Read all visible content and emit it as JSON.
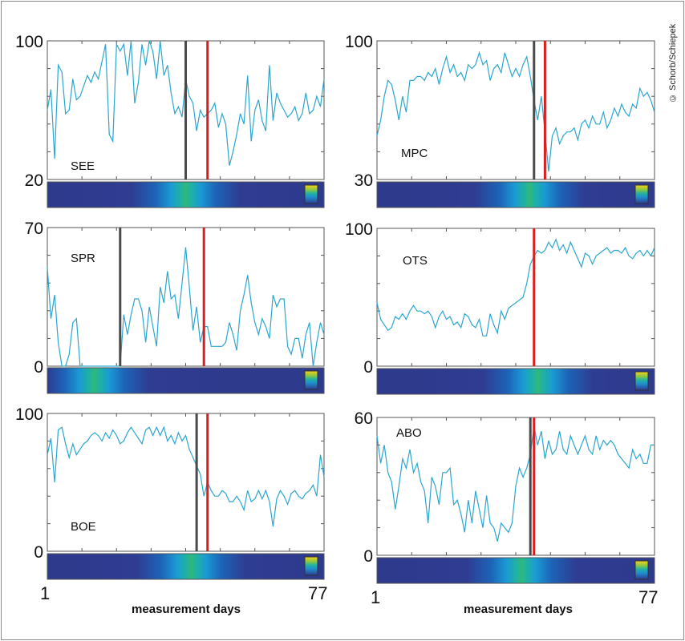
{
  "credit": "© Schorb/Schiepek",
  "x_axis_label": "measurement days",
  "chart_data": [
    {
      "type": "line",
      "label": "SEE",
      "ylim": [
        20,
        100
      ],
      "y_ticks": [
        "100",
        "20"
      ],
      "xlim": [
        1,
        77
      ],
      "black_marker_day": 39,
      "red_marker_day": 45,
      "series_color": "#2aa6d0",
      "values": [
        60,
        72,
        32,
        86,
        82,
        58,
        60,
        78,
        66,
        68,
        74,
        80,
        76,
        82,
        78,
        88,
        98,
        46,
        42,
        98,
        94,
        98,
        80,
        100,
        64,
        76,
        98,
        86,
        100,
        94,
        78,
        100,
        80,
        86,
        70,
        58,
        62,
        56,
        78,
        68,
        64,
        48,
        60,
        56,
        58,
        60,
        64,
        50,
        58,
        52,
        28,
        36,
        46,
        58,
        52,
        80,
        42,
        60,
        66,
        54,
        48,
        86,
        54,
        70,
        64,
        60,
        56,
        58,
        62,
        54,
        58,
        70,
        58,
        60,
        68,
        62,
        78
      ]
    },
    {
      "type": "line",
      "label": "MPC",
      "ylim": [
        30,
        100
      ],
      "y_ticks": [
        "100",
        "30"
      ],
      "xlim": [
        1,
        77
      ],
      "black_marker_day": 44,
      "red_marker_day": 47,
      "series_color": "#2aa6d0",
      "values": [
        52,
        60,
        72,
        80,
        78,
        70,
        60,
        72,
        64,
        80,
        80,
        82,
        82,
        80,
        84,
        82,
        86,
        78,
        86,
        92,
        84,
        88,
        82,
        84,
        80,
        88,
        86,
        88,
        94,
        88,
        90,
        80,
        86,
        88,
        84,
        94,
        88,
        82,
        86,
        82,
        88,
        92,
        82,
        70,
        60,
        72,
        54,
        34,
        52,
        56,
        48,
        52,
        54,
        54,
        56,
        50,
        58,
        60,
        56,
        62,
        58,
        58,
        64,
        56,
        60,
        66,
        62,
        68,
        64,
        62,
        68,
        66,
        76,
        72,
        74,
        70,
        64
      ]
    },
    {
      "type": "line",
      "label": "SPR",
      "ylim": [
        0,
        70
      ],
      "y_ticks": [
        "70",
        "0"
      ],
      "xlim": [
        1,
        77
      ],
      "black_marker_day": 21,
      "red_marker_day": 44,
      "series_color": "#2aa6d0",
      "values": [
        50,
        24,
        36,
        12,
        0,
        0,
        6,
        22,
        24,
        0,
        0,
        0,
        0,
        0,
        0,
        0,
        0,
        0,
        0,
        0,
        0,
        26,
        16,
        26,
        34,
        34,
        28,
        12,
        30,
        20,
        10,
        40,
        32,
        48,
        34,
        36,
        24,
        42,
        60,
        40,
        18,
        30,
        12,
        20,
        20,
        10,
        10,
        10,
        10,
        12,
        22,
        16,
        8,
        28,
        36,
        46,
        32,
        22,
        16,
        24,
        20,
        14,
        36,
        30,
        34,
        34,
        10,
        6,
        14,
        14,
        4,
        16,
        22,
        0,
        12,
        22,
        16
      ]
    },
    {
      "type": "line",
      "label": "OTS",
      "ylim": [
        0,
        100
      ],
      "y_ticks": [
        "100",
        "0"
      ],
      "xlim": [
        1,
        77
      ],
      "black_marker_day": null,
      "red_marker_day": 44,
      "series_color": "#2aa6d0",
      "values": [
        46,
        34,
        30,
        26,
        28,
        36,
        34,
        38,
        34,
        40,
        44,
        40,
        40,
        38,
        40,
        36,
        28,
        36,
        40,
        34,
        36,
        30,
        32,
        28,
        38,
        36,
        30,
        28,
        34,
        22,
        22,
        38,
        30,
        24,
        40,
        34,
        42,
        44,
        46,
        48,
        50,
        60,
        74,
        80,
        84,
        82,
        84,
        90,
        86,
        92,
        84,
        88,
        82,
        90,
        84,
        78,
        72,
        82,
        80,
        74,
        80,
        82,
        84,
        86,
        82,
        84,
        84,
        82,
        86,
        80,
        78,
        82,
        84,
        80,
        84,
        80,
        86
      ]
    },
    {
      "type": "line",
      "label": "BOE",
      "ylim": [
        0,
        100
      ],
      "y_ticks": [
        "100",
        "0"
      ],
      "xlim": [
        1,
        77
      ],
      "black_marker_day": 42,
      "red_marker_day": 45,
      "series_color": "#2aa6d0",
      "values": [
        70,
        82,
        50,
        88,
        90,
        78,
        68,
        78,
        70,
        74,
        78,
        80,
        84,
        86,
        84,
        80,
        86,
        82,
        88,
        84,
        78,
        80,
        86,
        90,
        86,
        82,
        78,
        88,
        90,
        84,
        90,
        84,
        90,
        80,
        84,
        78,
        86,
        80,
        84,
        74,
        68,
        62,
        56,
        40,
        50,
        44,
        40,
        40,
        44,
        42,
        36,
        36,
        40,
        36,
        30,
        44,
        36,
        38,
        44,
        38,
        44,
        36,
        18,
        38,
        44,
        40,
        34,
        42,
        44,
        40,
        38,
        42,
        44,
        48,
        40,
        70,
        54
      ]
    },
    {
      "type": "line",
      "label": "ABO",
      "ylim": [
        0,
        60
      ],
      "y_ticks": [
        "60",
        "0"
      ],
      "xlim": [
        1,
        77
      ],
      "black_marker_day": 43,
      "red_marker_day": 44,
      "series_color": "#2aa6d0",
      "values": [
        52,
        40,
        48,
        36,
        32,
        20,
        30,
        42,
        38,
        46,
        36,
        40,
        32,
        28,
        14,
        34,
        30,
        22,
        36,
        36,
        38,
        22,
        24,
        18,
        10,
        24,
        14,
        28,
        20,
        12,
        26,
        14,
        12,
        6,
        14,
        12,
        10,
        14,
        30,
        38,
        34,
        38,
        44,
        56,
        48,
        54,
        42,
        50,
        44,
        46,
        54,
        46,
        44,
        52,
        48,
        44,
        48,
        52,
        46,
        44,
        52,
        46,
        50,
        48,
        50,
        48,
        44,
        42,
        40,
        38,
        46,
        42,
        44,
        40,
        40,
        48,
        48
      ]
    }
  ]
}
